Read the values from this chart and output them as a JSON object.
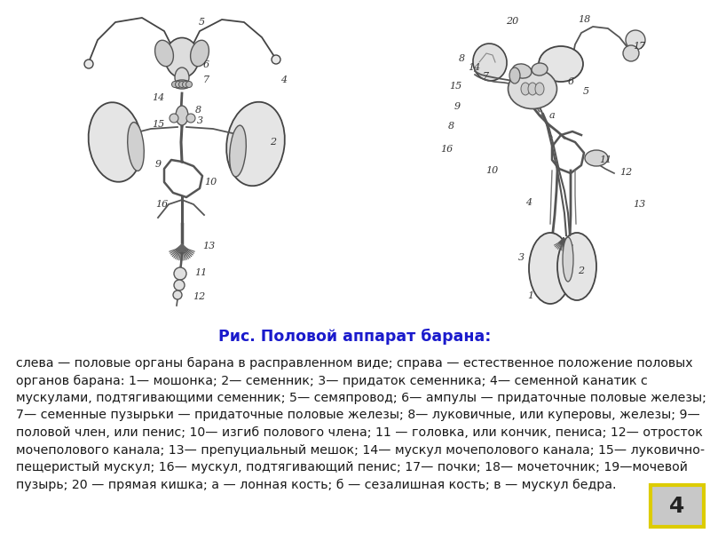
{
  "background_color": "#ffffff",
  "title": "Рис. Половой аппарат барана:",
  "title_color": "#1a1acc",
  "title_fontsize": 12.5,
  "body_text_line1": "слева — половые органы барана в расправленном виде; справа — естественное положение половых",
  "body_text_line2": "органов барана: 1— мошонка; 2— семенник; 3— придаток семенника; 4— семенной канатик с",
  "body_text_line3": "мускулами, подтягивающими семенник; 5— семяпровод; 6— ампулы — придаточные половые железы;",
  "body_text_line4": "7— семенные пузырьки — придаточные половые железы; 8— луковичные, или куперовы, железы; 9—",
  "body_text_line5": "половой член, или пенис; 10— изгиб полового члена; 11 — головка, или кончик, пениса; 12— отросток",
  "body_text_line6": "мочеполового канала; 13— препуциальный мешок; 14— мускул мочеполового канала; 15— луковично-",
  "body_text_line7": "пещеристый мускул; 16— мускул, подтягивающий пенис; 17— почки; 18— мочеточник; 19—мочевой",
  "body_text_line8": "пузырь; 20 — прямая кишка; а — лонная кость; б — сезалишная кость; в — мускул бедра.",
  "body_fontsize": 10.2,
  "body_color": "#1a1a1a",
  "page_number": "4",
  "page_number_color": "#222222",
  "page_bg_color": "#c8c8c8",
  "page_border_color": "#ddcc00",
  "fig_width": 8.0,
  "fig_height": 6.0
}
